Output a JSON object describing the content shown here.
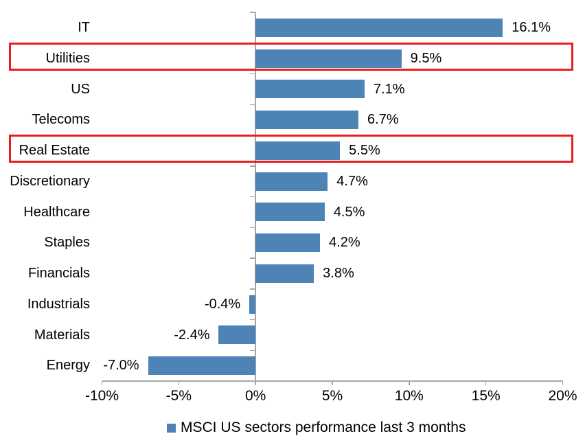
{
  "chart_data": {
    "type": "bar",
    "orientation": "horizontal",
    "title": "",
    "categories": [
      "IT",
      "Utilities",
      "US",
      "Telecoms",
      "Real Estate",
      "Discretionary",
      "Healthcare",
      "Staples",
      "Financials",
      "Industrials",
      "Materials",
      "Energy"
    ],
    "values": [
      16.1,
      9.5,
      7.1,
      6.7,
      5.5,
      4.7,
      4.5,
      4.2,
      3.8,
      -0.4,
      -2.4,
      -7.0
    ],
    "value_labels": [
      "16.1%",
      "9.5%",
      "7.1%",
      "6.7%",
      "5.5%",
      "4.7%",
      "4.5%",
      "4.2%",
      "3.8%",
      "-0.4%",
      "-2.4%",
      "-7.0%"
    ],
    "xlim": [
      -10,
      20
    ],
    "x_ticks": [
      -10,
      -5,
      0,
      5,
      10,
      15,
      20
    ],
    "x_tick_labels": [
      "-10%",
      "-5%",
      "0%",
      "5%",
      "10%",
      "15%",
      "20%"
    ],
    "grid": false,
    "legend": "MSCI US sectors performance last 3 months",
    "legend_position": "bottom",
    "highlighted_categories": [
      "Utilities",
      "Real Estate"
    ],
    "colors": {
      "bar": "#4E83B6",
      "highlight_box": "#EC1C1C",
      "axis": "#A6A6A6",
      "text": "#000000",
      "background": "#FFFFFF"
    }
  }
}
